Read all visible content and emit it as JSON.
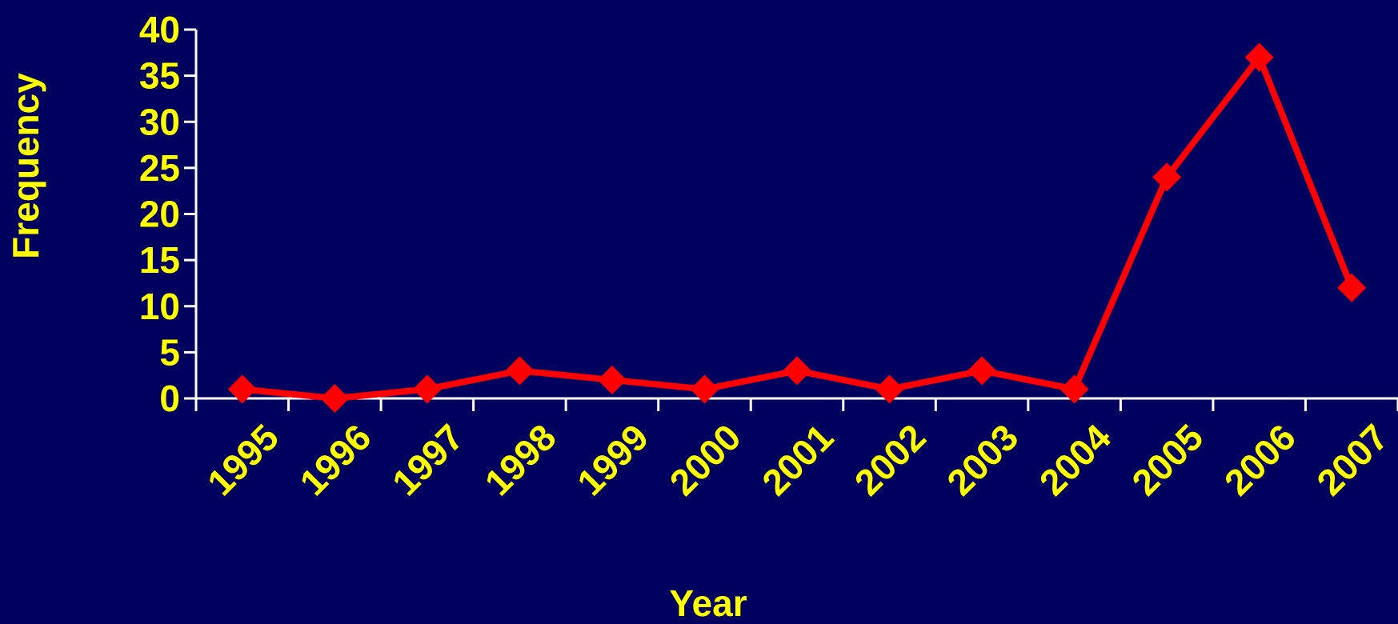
{
  "colors": {
    "background": "#00005e",
    "text": "#ffff00",
    "axis": "#ffffff",
    "series": "#ff0000"
  },
  "chart_data": {
    "type": "line",
    "title": "",
    "xlabel": "Year",
    "ylabel": "Frequency",
    "x": [
      "1995",
      "1996",
      "1997",
      "1998",
      "1999",
      "2000",
      "2001",
      "2002",
      "2003",
      "2004",
      "2005",
      "2006",
      "2007"
    ],
    "series": [
      {
        "values": [
          1,
          0,
          1,
          3,
          2,
          1,
          3,
          1,
          3,
          1,
          24,
          37,
          12
        ],
        "marker": "diamond"
      }
    ],
    "ylim": [
      0,
      40
    ],
    "yticks": [
      "0",
      "5",
      "10",
      "15",
      "20",
      "25",
      "30",
      "35",
      "40"
    ],
    "grid": false,
    "legend": "none"
  }
}
